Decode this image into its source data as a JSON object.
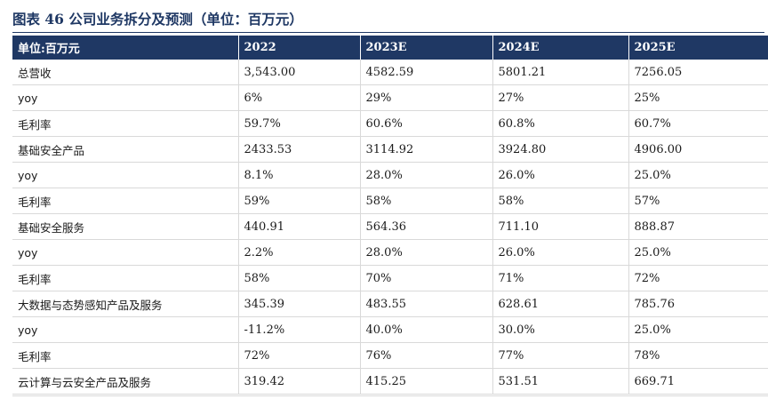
{
  "title": "图表 46 公司业务拆分及预测（单位：百万元）",
  "table": {
    "headers": [
      "单位:百万元",
      "2022",
      "2023E",
      "2024E",
      "2025E"
    ],
    "rows": [
      [
        "总营收",
        "3,543.00",
        "4582.59",
        "5801.21",
        "7256.05"
      ],
      [
        "yoy",
        "6%",
        "29%",
        "27%",
        "25%"
      ],
      [
        "毛利率",
        "59.7%",
        "60.6%",
        "60.8%",
        "60.7%"
      ],
      [
        "基础安全产品",
        "2433.53",
        "3114.92",
        "3924.80",
        "4906.00"
      ],
      [
        "yoy",
        "8.1%",
        "28.0%",
        "26.0%",
        "25.0%"
      ],
      [
        "毛利率",
        "59%",
        "58%",
        "58%",
        "57%"
      ],
      [
        "基础安全服务",
        "440.91",
        "564.36",
        "711.10",
        "888.87"
      ],
      [
        "yoy",
        "2.2%",
        "28.0%",
        "26.0%",
        "25.0%"
      ],
      [
        "毛利率",
        "58%",
        "70%",
        "71%",
        "72%"
      ],
      [
        "大数据与态势感知产品及服务",
        "345.39",
        "483.55",
        "628.61",
        "785.76"
      ],
      [
        "yoy",
        "-11.2%",
        "40.0%",
        "30.0%",
        "25.0%"
      ],
      [
        "毛利率",
        "72%",
        "76%",
        "77%",
        "78%"
      ],
      [
        "云计算与云安全产品及服务",
        "319.42",
        "415.25",
        "531.51",
        "669.71"
      ]
    ]
  }
}
